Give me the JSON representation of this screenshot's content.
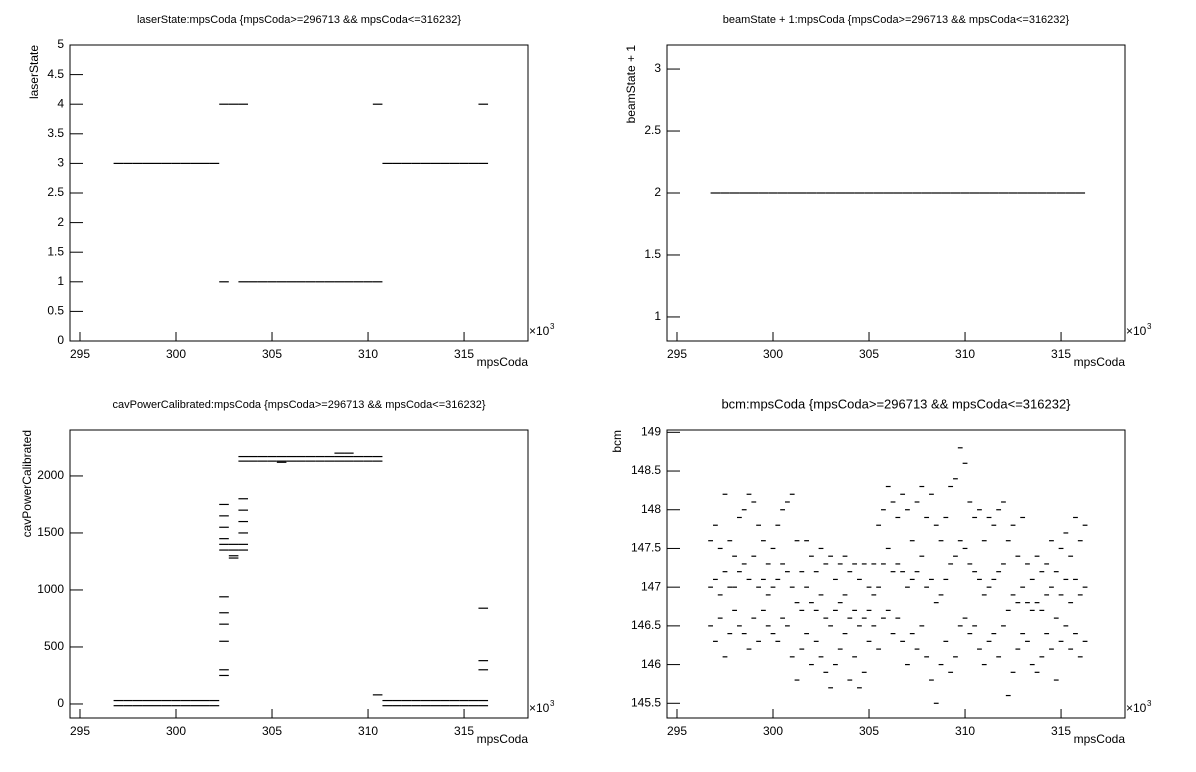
{
  "chart_data": [
    {
      "type": "scatter",
      "title": "laserState:mpsCoda {mpsCoda>=296713 && mpsCoda<=316232}",
      "x_label": "mpsCoda",
      "y_label": "laserState",
      "x_multiplier": "×10",
      "x_multiplier_exponent": "3",
      "color": "#000000",
      "xlim": [
        294.48,
        318.33
      ],
      "xticks": [
        295,
        300,
        305,
        310,
        315
      ],
      "ylim": [
        0,
        5
      ],
      "yticks": [
        0,
        0.5,
        1,
        1.5,
        2,
        2.5,
        3,
        3.5,
        4,
        4.5,
        5
      ],
      "x": [
        297,
        297.5,
        298,
        298.5,
        299,
        299.5,
        300,
        300.5,
        301,
        301.5,
        302,
        302.5,
        303,
        303.5,
        310.5,
        316,
        302.5,
        303.5,
        304,
        304.5,
        305,
        305.5,
        306,
        306.5,
        307,
        307.5,
        308,
        308.5,
        309,
        309.5,
        310,
        310.5,
        311,
        311.5,
        312,
        312.5,
        313,
        313.5,
        314,
        314.5,
        315,
        315.5,
        316
      ],
      "y": [
        3,
        3,
        3,
        3,
        3,
        3,
        3,
        3,
        3,
        3,
        3,
        4,
        4,
        4,
        4,
        4,
        1,
        1,
        1,
        1,
        1,
        1,
        1,
        1,
        1,
        1,
        1,
        1,
        1,
        1,
        1,
        1,
        3,
        3,
        3,
        3,
        3,
        3,
        3,
        3,
        3,
        3,
        3
      ]
    },
    {
      "type": "scatter",
      "title": "beamState + 1:mpsCoda {mpsCoda>=296713 && mpsCoda<=316232}",
      "x_label": "mpsCoda",
      "y_label": "beamState + 1",
      "x_multiplier": "×10",
      "x_multiplier_exponent": "3",
      "color": "#000000",
      "xlim": [
        294.48,
        318.33
      ],
      "xticks": [
        295,
        300,
        305,
        310,
        315
      ],
      "ylim": [
        0.806,
        3.194
      ],
      "yticks": [
        1,
        1.5,
        2,
        2.5,
        3
      ],
      "x": [
        297,
        297.5,
        298,
        298.5,
        299,
        299.5,
        300,
        300.5,
        301,
        301.5,
        302,
        302.5,
        303,
        303.5,
        304,
        304.5,
        305,
        305.5,
        306,
        306.5,
        307,
        307.5,
        308,
        308.5,
        309,
        309.5,
        310,
        310.5,
        311,
        311.5,
        312,
        312.5,
        313,
        313.5,
        314,
        314.5,
        315,
        315.5,
        316
      ],
      "y": [
        2,
        2,
        2,
        2,
        2,
        2,
        2,
        2,
        2,
        2,
        2,
        2,
        2,
        2,
        2,
        2,
        2,
        2,
        2,
        2,
        2,
        2,
        2,
        2,
        2,
        2,
        2,
        2,
        2,
        2,
        2,
        2,
        2,
        2,
        2,
        2,
        2,
        2,
        2
      ]
    },
    {
      "type": "scatter",
      "title": "cavPowerCalibrated:mpsCoda {mpsCoda>=296713 && mpsCoda<=316232}",
      "x_label": "mpsCoda",
      "y_label": "cavPowerCalibrated",
      "x_multiplier": "×10",
      "x_multiplier_exponent": "3",
      "color": "#000000",
      "xlim": [
        294.48,
        318.33
      ],
      "xticks": [
        295,
        300,
        305,
        310,
        315
      ],
      "ylim": [
        -123,
        2403
      ],
      "yticks": [
        0,
        500,
        1000,
        1500,
        2000
      ],
      "x": [
        297,
        297.5,
        298,
        298.5,
        299,
        299.5,
        300,
        300.5,
        301,
        301.5,
        302,
        297,
        297.5,
        298,
        298.5,
        299,
        299.5,
        300,
        300.5,
        301,
        301.5,
        302,
        302.5,
        302.5,
        302.5,
        302.5,
        302.5,
        302.5,
        302.5,
        302.5,
        302.5,
        302.5,
        302.5,
        302.5,
        303,
        303,
        303,
        303,
        303.5,
        303.5,
        303.5,
        303.5,
        303.5,
        303.5,
        303.5,
        304,
        304.5,
        305,
        305.5,
        306,
        306.5,
        307,
        307.5,
        308,
        308.5,
        309,
        309.5,
        310,
        310.5,
        303.5,
        304,
        304.5,
        305,
        305.5,
        306,
        306.5,
        307,
        307.5,
        308,
        308.5,
        309,
        309.5,
        310,
        310.5,
        308.5,
        309,
        305.5,
        311,
        311.5,
        312,
        312.5,
        313,
        313.5,
        314,
        314.5,
        315,
        315.5,
        316,
        311,
        311.5,
        312,
        312.5,
        313,
        313.5,
        314,
        314.5,
        315,
        315.5,
        316,
        316,
        316,
        316,
        310.5
      ],
      "y": [
        30,
        30,
        30,
        30,
        30,
        30,
        30,
        30,
        30,
        30,
        30,
        -15,
        -15,
        -15,
        -15,
        -15,
        -15,
        -15,
        -15,
        -15,
        -15,
        -15,
        940,
        800,
        700,
        550,
        300,
        250,
        1750,
        1650,
        1550,
        1450,
        1400,
        1350,
        1300,
        1280,
        1350,
        1400,
        1800,
        1700,
        1600,
        1500,
        1400,
        1350,
        2170,
        2170,
        2170,
        2170,
        2170,
        2170,
        2170,
        2170,
        2170,
        2170,
        2170,
        2170,
        2170,
        2170,
        2170,
        2130,
        2130,
        2130,
        2130,
        2130,
        2130,
        2130,
        2130,
        2130,
        2130,
        2130,
        2130,
        2130,
        2130,
        2130,
        2200,
        2200,
        2120,
        30,
        30,
        30,
        30,
        30,
        30,
        30,
        30,
        30,
        30,
        30,
        -15,
        -15,
        -15,
        -15,
        -15,
        -15,
        -15,
        -15,
        -15,
        -15,
        -15,
        840,
        380,
        300,
        80
      ]
    },
    {
      "type": "scatter",
      "title": "bcm:mpsCoda {mpsCoda>=296713 && mpsCoda<=316232}",
      "x_label": "mpsCoda",
      "y_label": "bcm",
      "x_multiplier": "×10",
      "x_multiplier_exponent": "3",
      "color": "#000000",
      "xlim": [
        294.48,
        318.33
      ],
      "xticks": [
        295,
        300,
        305,
        310,
        315
      ],
      "ylim": [
        145.31,
        149.03
      ],
      "yticks": [
        145.5,
        146,
        146.5,
        147,
        147.5,
        148,
        148.5,
        149
      ],
      "x": [
        296.75,
        297,
        297.25,
        297.5,
        297.75,
        298,
        298.25,
        298.5,
        298.75,
        299,
        299.25,
        299.5,
        299.75,
        300,
        300.25,
        300.5,
        300.75,
        301,
        301.25,
        301.5,
        301.75,
        302,
        302.25,
        302.5,
        302.75,
        303,
        303.25,
        303.5,
        303.75,
        304,
        304.25,
        304.5,
        304.75,
        305,
        305.25,
        305.5,
        305.75,
        306,
        306.25,
        306.5,
        306.75,
        307,
        307.25,
        307.5,
        307.75,
        308,
        308.25,
        308.5,
        308.75,
        309,
        309.25,
        309.5,
        309.75,
        310,
        310.25,
        310.5,
        310.75,
        311,
        311.25,
        311.5,
        311.75,
        312,
        312.25,
        312.5,
        312.75,
        313,
        313.25,
        313.5,
        313.75,
        314,
        314.25,
        314.5,
        314.75,
        315,
        315.25,
        315.5,
        315.75,
        316,
        316.25,
        296.75,
        297,
        297.25,
        297.5,
        297.75,
        298,
        298.25,
        298.5,
        298.75,
        299,
        299.25,
        299.5,
        299.75,
        300,
        300.25,
        300.5,
        300.75,
        301,
        301.25,
        301.5,
        301.75,
        302,
        302.25,
        302.5,
        302.75,
        303,
        303.25,
        303.5,
        303.75,
        304,
        304.25,
        304.5,
        304.75,
        305,
        305.25,
        305.5,
        305.75,
        306,
        306.25,
        306.5,
        306.75,
        307,
        307.25,
        307.5,
        307.75,
        308,
        308.25,
        308.5,
        308.75,
        309,
        309.25,
        309.5,
        309.75,
        310,
        310.25,
        310.5,
        310.75,
        311,
        311.25,
        311.5,
        311.75,
        312,
        312.25,
        312.5,
        312.75,
        313,
        313.25,
        313.5,
        313.75,
        314,
        314.25,
        314.5,
        314.75,
        315,
        315.25,
        315.5,
        315.75,
        316,
        316.25,
        296.75,
        297,
        297.25,
        297.5,
        297.75,
        298,
        298.25,
        298.5,
        298.75,
        299,
        299.25,
        299.5,
        299.75,
        300,
        300.25,
        300.5,
        300.75,
        301,
        301.25,
        301.5,
        301.75,
        302,
        302.25,
        302.5,
        302.75,
        303,
        303.25,
        303.5,
        303.75,
        304,
        304.25,
        304.5,
        304.75,
        305,
        305.25,
        305.5,
        305.75,
        306,
        306.25,
        306.5,
        306.75,
        307,
        307.25,
        307.5,
        307.75,
        308,
        308.25,
        308.5,
        308.75,
        309,
        309.25,
        309.5,
        309.75,
        310,
        310.25,
        310.5,
        310.75,
        311,
        311.25,
        311.5,
        311.75,
        312,
        312.25,
        312.5,
        312.75,
        313,
        313.25,
        313.5,
        313.75,
        314,
        314.25,
        314.5,
        314.75,
        315,
        315.25,
        315.5,
        315.75,
        316,
        316.25
      ],
      "y": [
        147.6,
        147.8,
        147.5,
        148.2,
        147.6,
        147.4,
        147.9,
        148.0,
        148.2,
        148.1,
        147.8,
        147.6,
        147.3,
        147.5,
        147.8,
        148.0,
        148.1,
        148.2,
        147.6,
        147.2,
        147.6,
        147.4,
        147.2,
        147.5,
        147.3,
        147.4,
        147.1,
        147.3,
        147.4,
        147.2,
        147.3,
        147.1,
        147.3,
        147.0,
        147.3,
        147.8,
        148.0,
        148.3,
        148.1,
        147.9,
        148.2,
        148.0,
        147.6,
        148.1,
        148.3,
        147.9,
        148.2,
        147.8,
        147.6,
        147.9,
        148.3,
        148.4,
        148.8,
        148.6,
        148.1,
        147.9,
        148.0,
        147.6,
        147.9,
        147.8,
        148.0,
        148.1,
        147.6,
        147.8,
        147.4,
        147.9,
        147.3,
        147.1,
        147.4,
        147.2,
        147.3,
        147.6,
        147.2,
        147.5,
        147.7,
        147.4,
        147.9,
        147.6,
        147.8,
        146.5,
        146.3,
        146.6,
        146.1,
        146.4,
        146.7,
        146.5,
        146.4,
        146.2,
        146.6,
        146.3,
        146.7,
        146.5,
        146.4,
        146.3,
        146.6,
        146.5,
        146.1,
        145.8,
        146.2,
        146.4,
        146.0,
        146.3,
        146.1,
        145.9,
        145.7,
        146.0,
        146.2,
        146.4,
        145.8,
        146.1,
        145.7,
        145.9,
        146.3,
        146.5,
        146.2,
        146.6,
        146.7,
        146.4,
        146.6,
        146.3,
        146.0,
        146.4,
        146.2,
        146.5,
        146.1,
        145.8,
        145.5,
        146.0,
        146.3,
        145.9,
        146.1,
        146.5,
        146.6,
        146.4,
        146.5,
        146.2,
        146.0,
        146.3,
        146.4,
        146.1,
        146.5,
        145.6,
        145.9,
        146.2,
        146.4,
        146.3,
        146.0,
        145.9,
        146.1,
        146.4,
        146.2,
        145.8,
        146.3,
        146.5,
        146.2,
        146.4,
        146.1,
        146.3,
        147.0,
        147.1,
        146.9,
        147.2,
        147.0,
        147.0,
        147.2,
        147.3,
        147.1,
        147.4,
        147.0,
        147.1,
        146.9,
        147.0,
        147.1,
        147.3,
        147.2,
        147.0,
        146.8,
        146.7,
        147.0,
        146.8,
        146.7,
        146.9,
        146.6,
        146.5,
        146.7,
        146.8,
        146.9,
        146.6,
        146.7,
        146.5,
        146.6,
        146.7,
        146.9,
        147.0,
        147.3,
        147.5,
        147.2,
        147.3,
        147.2,
        147.0,
        147.1,
        147.2,
        147.4,
        147.0,
        147.1,
        146.8,
        146.9,
        147.1,
        147.3,
        147.4,
        147.6,
        147.5,
        147.3,
        147.2,
        147.1,
        146.9,
        147.0,
        147.1,
        147.2,
        147.3,
        146.7,
        146.9,
        146.8,
        147.0,
        146.8,
        146.7,
        146.8,
        146.7,
        146.9,
        147.0,
        146.6,
        146.9,
        147.1,
        146.8,
        147.1,
        146.9,
        147.0
      ]
    }
  ]
}
